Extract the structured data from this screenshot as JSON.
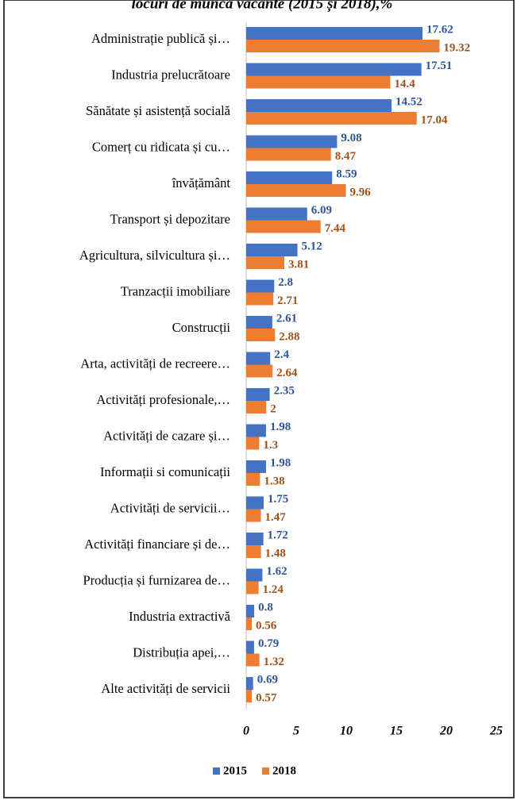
{
  "chart_data": {
    "type": "bar",
    "orientation": "horizontal",
    "title": "locuri de muncă vacante (2015 și 2018),%",
    "categories": [
      "Administrație publică și…",
      "Industria prelucrătoare",
      "Sănătate și asistență socială",
      "Comerț cu ridicata și cu…",
      "învățământ",
      "Transport și depozitare",
      "Agricultura, silvicultura și…",
      "Tranzacții imobiliare",
      "Construcții",
      "Arta, activități de recreere…",
      "Activități profesionale,…",
      "Activități de cazare și…",
      "Informații si comunicații",
      "Activități de servicii…",
      "Activități financiare și de…",
      "Producția și furnizarea de…",
      "Industria extractivă",
      "Distribuția apei,…",
      "Alte activități de servicii"
    ],
    "series": [
      {
        "name": "2015",
        "color": "#4472c4",
        "label_color": "#2f5597",
        "values": [
          17.62,
          17.51,
          14.52,
          9.08,
          8.59,
          6.09,
          5.12,
          2.8,
          2.61,
          2.4,
          2.35,
          1.98,
          1.98,
          1.75,
          1.72,
          1.62,
          0.8,
          0.79,
          0.69
        ]
      },
      {
        "name": "2018",
        "color": "#ed7d31",
        "label_color": "#a0521a",
        "values": [
          19.32,
          14.4,
          17.04,
          8.47,
          9.96,
          7.44,
          3.81,
          2.71,
          2.88,
          2.64,
          2,
          1.3,
          1.38,
          1.47,
          1.48,
          1.24,
          0.56,
          1.32,
          0.57
        ]
      }
    ],
    "xlim": [
      0,
      25
    ],
    "xticks": [
      0,
      5,
      10,
      15,
      20,
      25
    ],
    "legend": "bottom"
  }
}
